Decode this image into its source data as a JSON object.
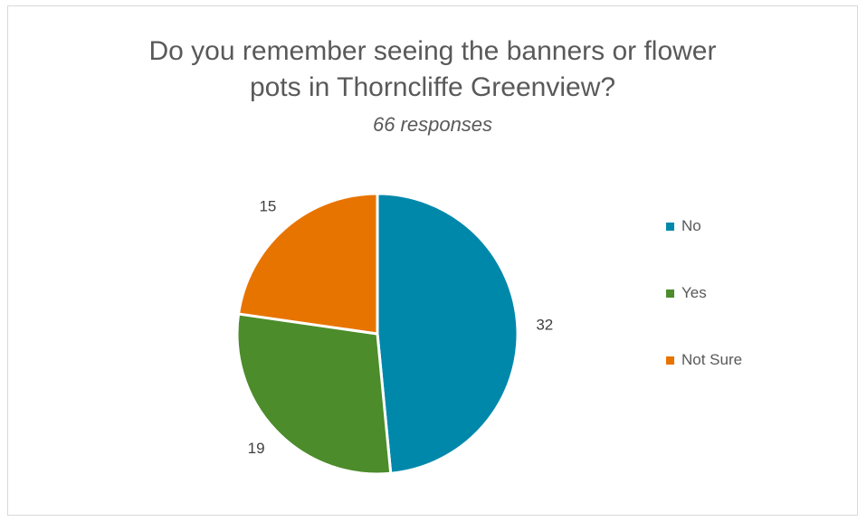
{
  "chart_data": {
    "type": "pie",
    "title": "Do you remember seeing the banners or flower pots in Thorncliffe Greenview?",
    "title_lines": [
      "Do you remember seeing the banners or flower",
      "pots in Thorncliffe Greenview?"
    ],
    "subtitle": "66 responses",
    "slices": [
      {
        "label": "No",
        "value": 32,
        "color": "#0088ab"
      },
      {
        "label": "Yes",
        "value": 19,
        "color": "#4c8c2b"
      },
      {
        "label": "Not Sure",
        "value": 15,
        "color": "#e87400"
      }
    ],
    "data_labels": [
      "32",
      "19",
      "15"
    ],
    "legend_position": "right"
  }
}
